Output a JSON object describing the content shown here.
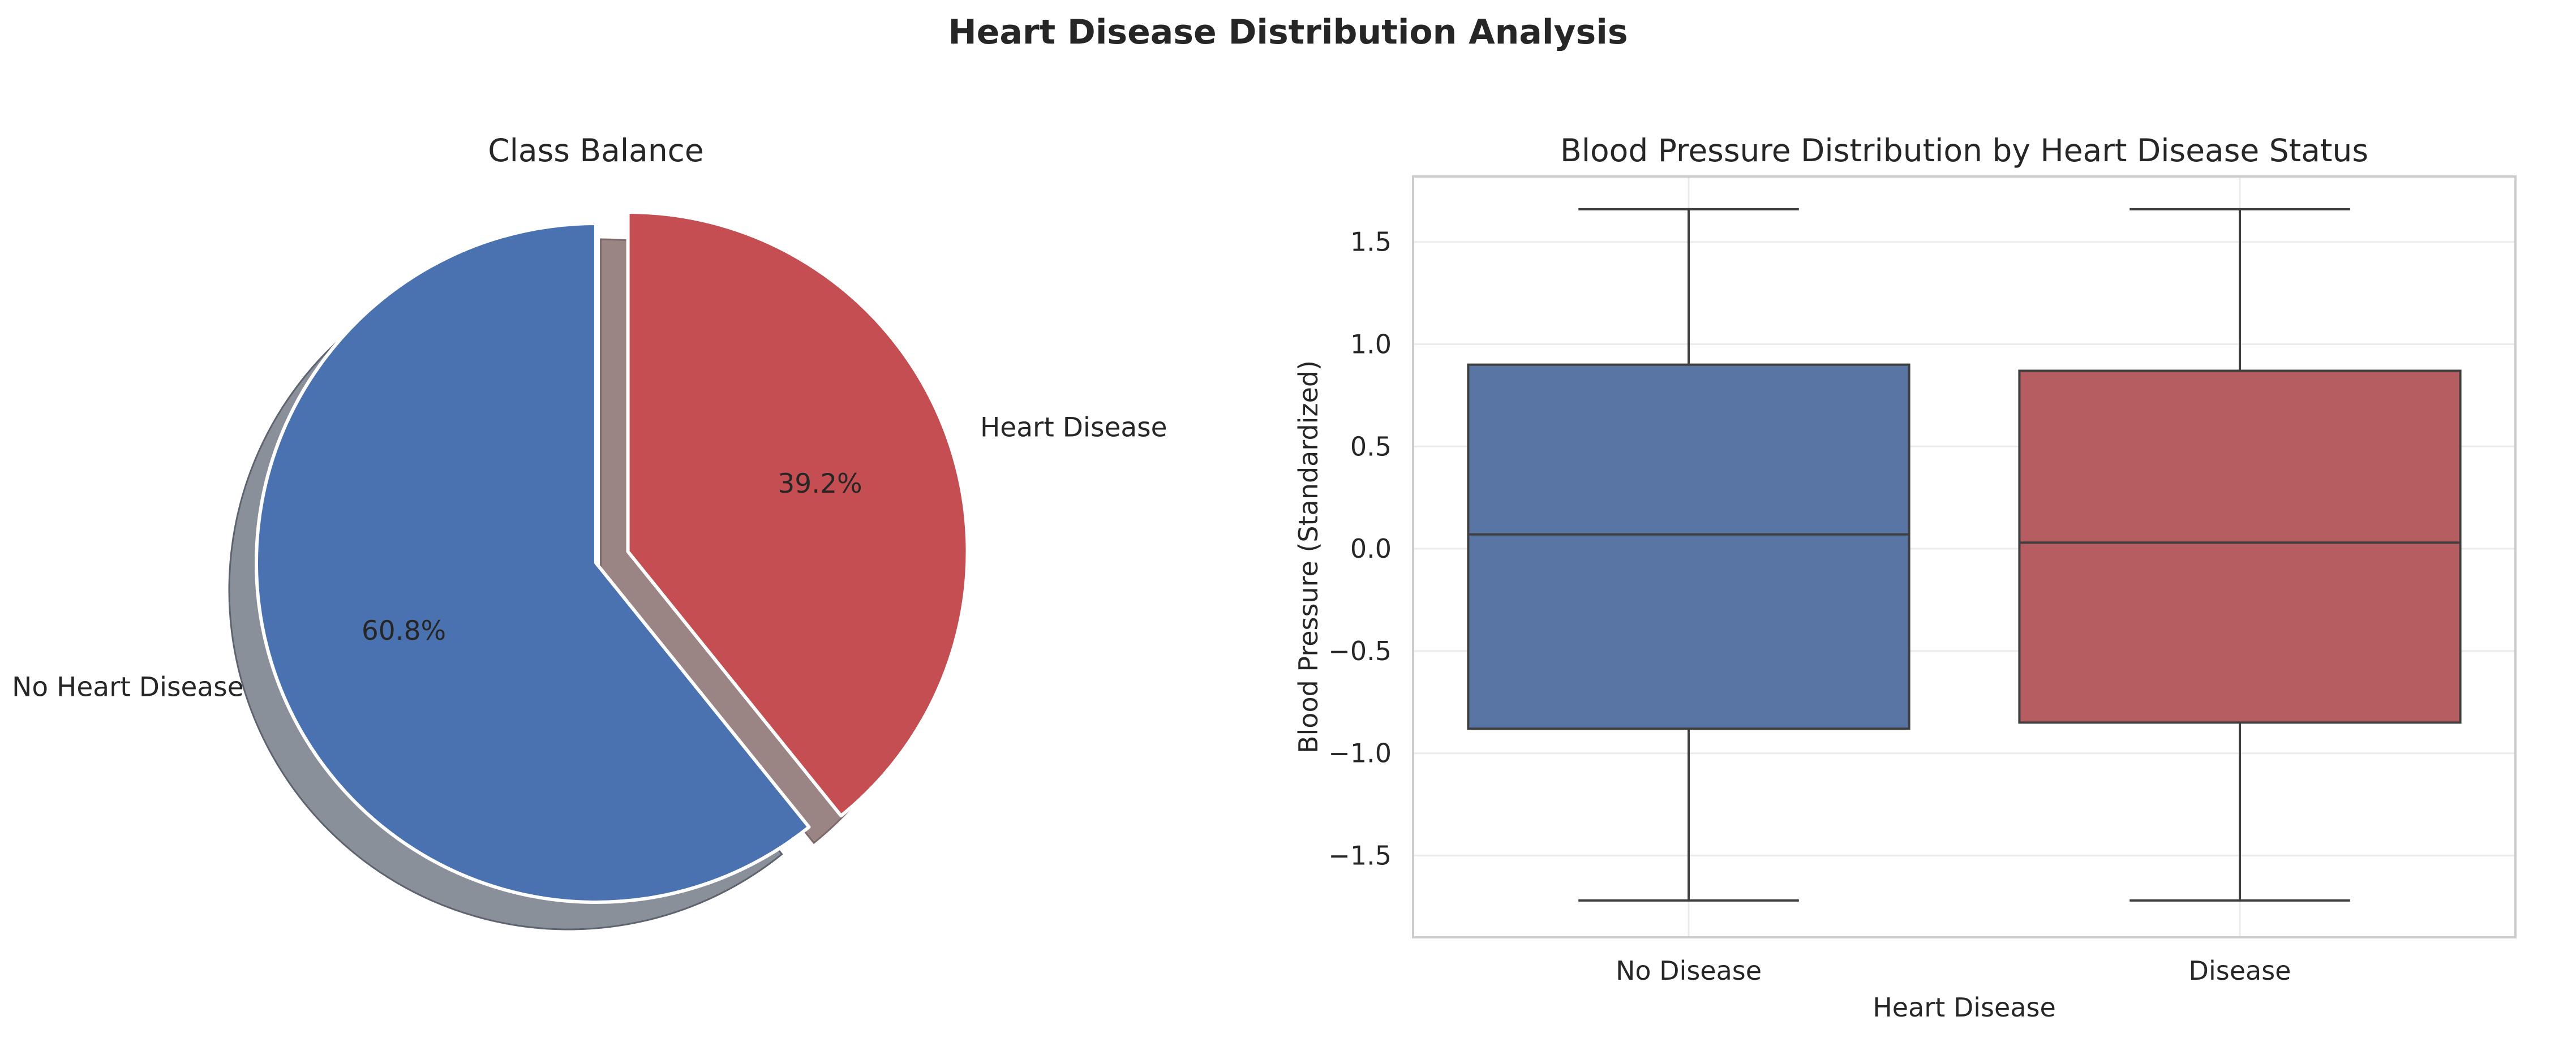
{
  "figure": {
    "suptitle": "Heart Disease Distribution Analysis"
  },
  "chart_data": [
    {
      "type": "pie",
      "title": "Class Balance",
      "categories": [
        "No Heart Disease",
        "Heart Disease"
      ],
      "values": [
        60.8,
        39.2
      ],
      "value_labels": [
        "60.8%",
        "39.2%"
      ],
      "colors": [
        "#4a72b0",
        "#c44e52"
      ],
      "explode": [
        0,
        0.1
      ],
      "shadow": true,
      "start_angle_deg": 90
    },
    {
      "type": "box",
      "title": "Blood Pressure Distribution by Heart Disease Status",
      "xlabel": "Heart Disease",
      "ylabel": "Blood Pressure (Standardized)",
      "categories": [
        "No Disease",
        "Disease"
      ],
      "ylim": [
        -1.9,
        1.82
      ],
      "yticks": [
        -1.5,
        -1.0,
        -0.5,
        0.0,
        0.5,
        1.0,
        1.5
      ],
      "ytick_labels": [
        "−1.5",
        "−1.0",
        "−0.5",
        "0.0",
        "0.5",
        "1.0",
        "1.5"
      ],
      "grid": true,
      "series": [
        {
          "category": "No Disease",
          "whisker_low": -1.72,
          "q1": -0.88,
          "median": 0.07,
          "q3": 0.9,
          "whisker_high": 1.66,
          "color": "#5975a4"
        },
        {
          "category": "Disease",
          "whisker_low": -1.72,
          "q1": -0.85,
          "median": 0.03,
          "q3": 0.87,
          "whisker_high": 1.66,
          "color": "#b55d60"
        }
      ]
    }
  ]
}
